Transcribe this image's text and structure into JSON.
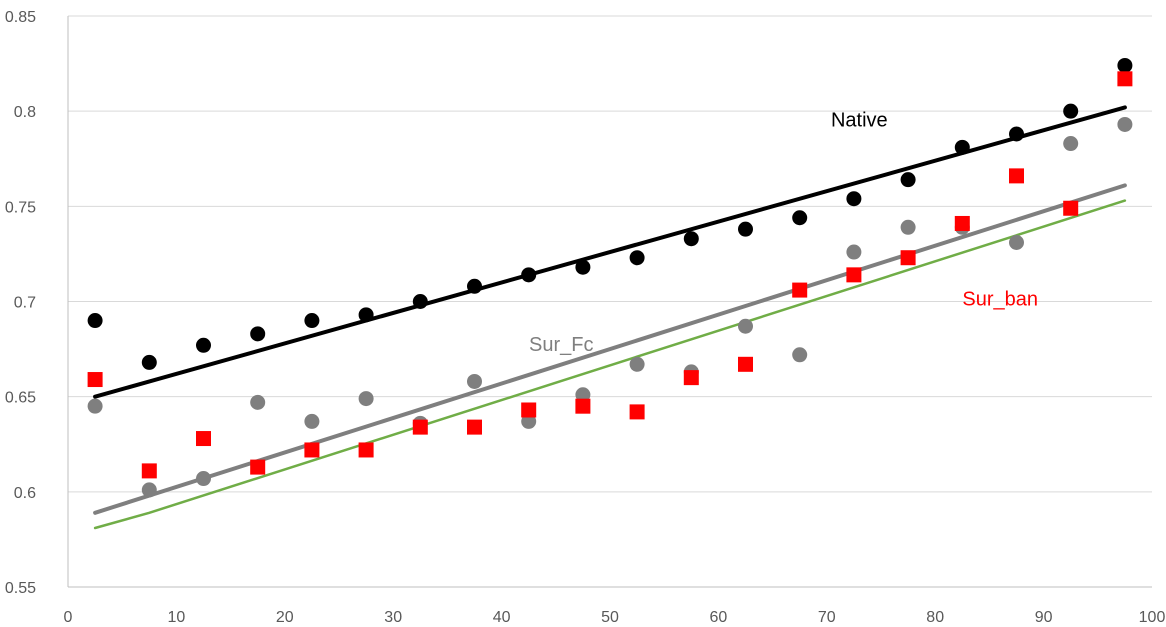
{
  "chart_data": {
    "type": "scatter",
    "title": "",
    "xlabel": "",
    "ylabel": "",
    "xlim": [
      0,
      100
    ],
    "ylim": [
      0.55,
      0.85
    ],
    "x_ticks": [
      "0",
      "10",
      "20",
      "30",
      "40",
      "50",
      "60",
      "70",
      "80",
      "90",
      "100"
    ],
    "y_ticks": [
      "0.55",
      "0.6",
      "0.65",
      "0.7",
      "0.75",
      "0.8",
      "0.85"
    ],
    "grid": "horizontal",
    "x": [
      2.5,
      7.5,
      12.5,
      17.5,
      22.5,
      27.5,
      32.5,
      37.5,
      42.5,
      47.5,
      52.5,
      57.5,
      62.5,
      67.5,
      72.5,
      77.5,
      82.5,
      87.5,
      92.5,
      97.5
    ],
    "series": [
      {
        "name": "Native",
        "marker": "circle",
        "color": "#000000",
        "values": [
          0.69,
          0.668,
          0.677,
          0.683,
          0.69,
          0.693,
          0.7,
          0.708,
          0.714,
          0.718,
          0.723,
          0.733,
          0.738,
          0.744,
          0.754,
          0.764,
          0.781,
          0.788,
          0.8,
          0.824
        ]
      },
      {
        "name": "Sur_Fc",
        "marker": "circle",
        "color": "#7f7f7f",
        "values": [
          0.645,
          0.601,
          0.607,
          0.647,
          0.637,
          0.649,
          0.636,
          0.658,
          0.637,
          0.651,
          0.667,
          0.663,
          0.687,
          0.672,
          0.726,
          0.739,
          0.739,
          0.731,
          0.783,
          0.793
        ]
      },
      {
        "name": "Sur_ban",
        "marker": "square",
        "color": "#ff0000",
        "values": [
          0.659,
          0.611,
          0.628,
          0.613,
          0.622,
          0.622,
          0.634,
          0.634,
          0.643,
          0.645,
          0.642,
          0.66,
          0.667,
          0.706,
          0.714,
          0.723,
          0.741,
          0.766,
          0.749,
          0.817
        ]
      }
    ],
    "trendlines": [
      {
        "color": "#000000",
        "points": [
          [
            2.5,
            0.65
          ],
          [
            97.5,
            0.802
          ]
        ]
      },
      {
        "color": "#7f7f7f",
        "points": [
          [
            2.5,
            0.589
          ],
          [
            97.5,
            0.761
          ]
        ]
      },
      {
        "color": "#70ad47",
        "points": [
          [
            2.5,
            0.581
          ],
          [
            7.5,
            0.589
          ],
          [
            97.5,
            0.753
          ]
        ]
      }
    ],
    "annotations": [
      {
        "text": "Native",
        "color": "#000000",
        "x": 73,
        "y": 0.792
      },
      {
        "text": "Sur_Fc",
        "color": "#7f7f7f",
        "x": 45.5,
        "y": 0.674
      },
      {
        "text": "Sur_ban",
        "color": "#ff0000",
        "x": 86,
        "y": 0.698
      }
    ]
  }
}
